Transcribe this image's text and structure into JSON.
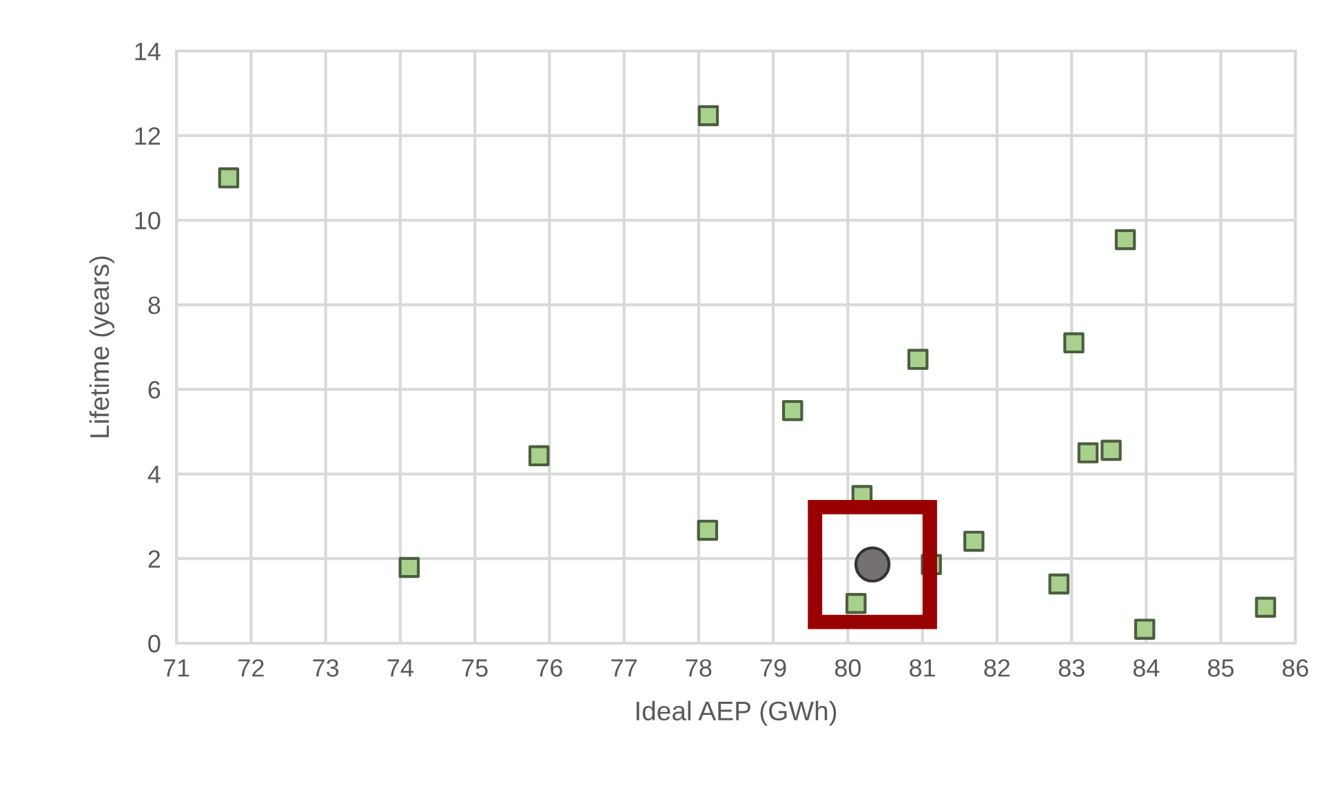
{
  "chart_data": {
    "type": "scatter",
    "xlabel": "Ideal AEP (GWh)",
    "ylabel": "Lifetime (years)",
    "xlim": [
      71,
      86
    ],
    "xticks": [
      71,
      72,
      73,
      74,
      75,
      76,
      77,
      78,
      79,
      80,
      81,
      82,
      83,
      84,
      85,
      86
    ],
    "ylim": [
      0,
      14
    ],
    "yticks": [
      0,
      2,
      4,
      6,
      8,
      10,
      12,
      14
    ],
    "grid": true,
    "legend": false,
    "series": [
      {
        "color": "#a9d18e",
        "marker": "square",
        "x": [
          71.7,
          74.12,
          75.86,
          78.13,
          78.12,
          79.26,
          80.19,
          80.11,
          80.94,
          81.12,
          81.69,
          82.83,
          83.03,
          83.22,
          83.53,
          83.72,
          83.98,
          85.6
        ],
        "values": [
          11.0,
          1.79,
          4.43,
          12.47,
          2.67,
          5.5,
          3.49,
          0.94,
          6.71,
          1.86,
          2.41,
          1.4,
          7.1,
          4.5,
          4.56,
          9.54,
          0.33,
          0.85
        ]
      },
      {
        "color": "#767171",
        "marker": "circle",
        "x": [
          80.33
        ],
        "values": [
          1.86
        ]
      }
    ]
  }
}
